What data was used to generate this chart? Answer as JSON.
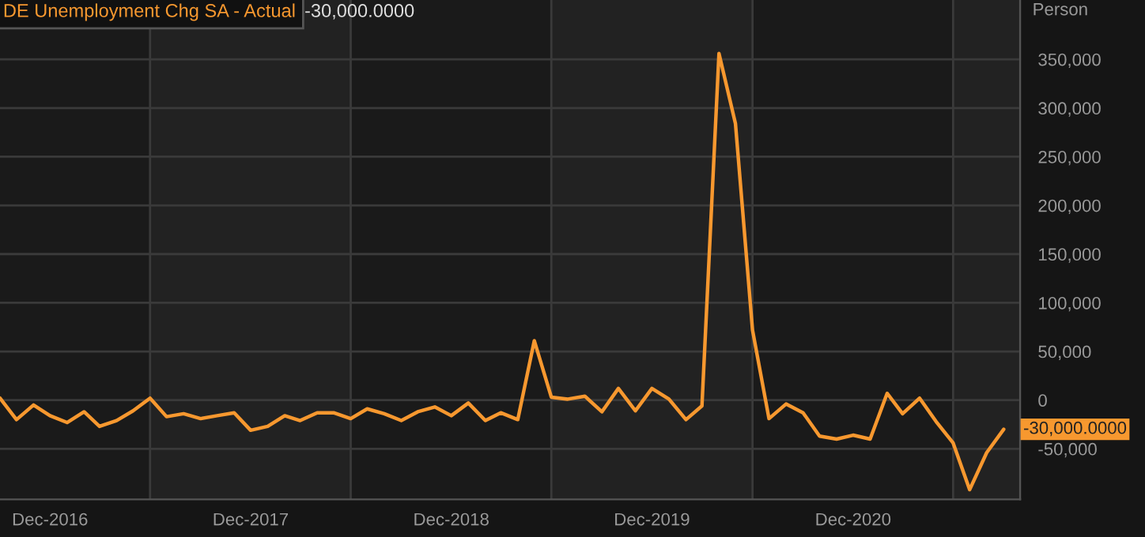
{
  "chart_data": {
    "type": "line",
    "ylabel": "Person",
    "legend": "top left",
    "x": [
      "2016-09",
      "2016-10",
      "2016-11",
      "2016-12",
      "2017-01",
      "2017-02",
      "2017-03",
      "2017-04",
      "2017-05",
      "2017-06",
      "2017-07",
      "2017-08",
      "2017-09",
      "2017-10",
      "2017-11",
      "2017-12",
      "2018-01",
      "2018-02",
      "2018-03",
      "2018-04",
      "2018-05",
      "2018-06",
      "2018-07",
      "2018-08",
      "2018-09",
      "2018-10",
      "2018-11",
      "2018-12",
      "2019-01",
      "2019-02",
      "2019-03",
      "2019-04",
      "2019-05",
      "2019-06",
      "2019-07",
      "2019-08",
      "2019-09",
      "2019-10",
      "2019-11",
      "2019-12",
      "2020-01",
      "2020-02",
      "2020-03",
      "2020-04",
      "2020-05",
      "2020-06",
      "2020-07",
      "2020-08",
      "2020-09",
      "2020-10",
      "2020-11",
      "2020-12",
      "2021-01",
      "2021-02",
      "2021-03",
      "2021-04",
      "2021-05",
      "2021-06",
      "2021-07",
      "2021-08",
      "2021-09"
    ],
    "series": [
      {
        "name": "DE Unemployment Chg SA - Actual",
        "color": "#f7982f",
        "values": [
          2000,
          -20000,
          -5000,
          -16000,
          -23000,
          -12000,
          -27000,
          -21000,
          -11000,
          2000,
          -17000,
          -14000,
          -19000,
          -16000,
          -13000,
          -31000,
          -27000,
          -16000,
          -21000,
          -13000,
          -13000,
          -19000,
          -9000,
          -14000,
          -21000,
          -12000,
          -7000,
          -16000,
          -3000,
          -21000,
          -13000,
          -20000,
          61000,
          3000,
          1000,
          4000,
          -12000,
          12000,
          -11000,
          12000,
          1000,
          -20000,
          -6000,
          356000,
          284000,
          72000,
          -19000,
          -4000,
          -13000,
          -37000,
          -40000,
          -36000,
          -40000,
          7000,
          -14000,
          2000,
          -22000,
          -44000,
          -92000,
          -54000,
          -30000
        ]
      }
    ],
    "xlim": [
      "2016-09",
      "2021-10"
    ],
    "xticks": [
      {
        "value": "2016-12",
        "label": "Dec-2016"
      },
      {
        "value": "2017-12",
        "label": "Dec-2017"
      },
      {
        "value": "2018-12",
        "label": "Dec-2018"
      },
      {
        "value": "2019-12",
        "label": "Dec-2019"
      },
      {
        "value": "2020-12",
        "label": "Dec-2020"
      }
    ],
    "ylim": [
      -102000,
      411000
    ],
    "yticks": [
      {
        "value": -50000,
        "label": "-50,000"
      },
      {
        "value": 0,
        "label": "0"
      },
      {
        "value": 50000,
        "label": "50,000"
      },
      {
        "value": 100000,
        "label": "100,000"
      },
      {
        "value": 150000,
        "label": "150,000"
      },
      {
        "value": 200000,
        "label": "200,000"
      },
      {
        "value": 250000,
        "label": "250,000"
      },
      {
        "value": 300000,
        "label": "300,000"
      },
      {
        "value": 350000,
        "label": "350,000"
      }
    ],
    "grid": "y",
    "bands": [
      {
        "axis": "x",
        "from": "2017-06",
        "to": "2018-06",
        "color": "#222222"
      },
      {
        "axis": "x",
        "from": "2019-06",
        "to": "2020-06",
        "color": "#222222"
      },
      {
        "axis": "x",
        "from": "2021-06",
        "to": "2021-10",
        "color": "#222222"
      }
    ],
    "annotations": [
      {
        "text": "-30,000.0000",
        "x": "2021-09",
        "y": -30000
      },
      "-30,000.0000"
    ]
  }
}
